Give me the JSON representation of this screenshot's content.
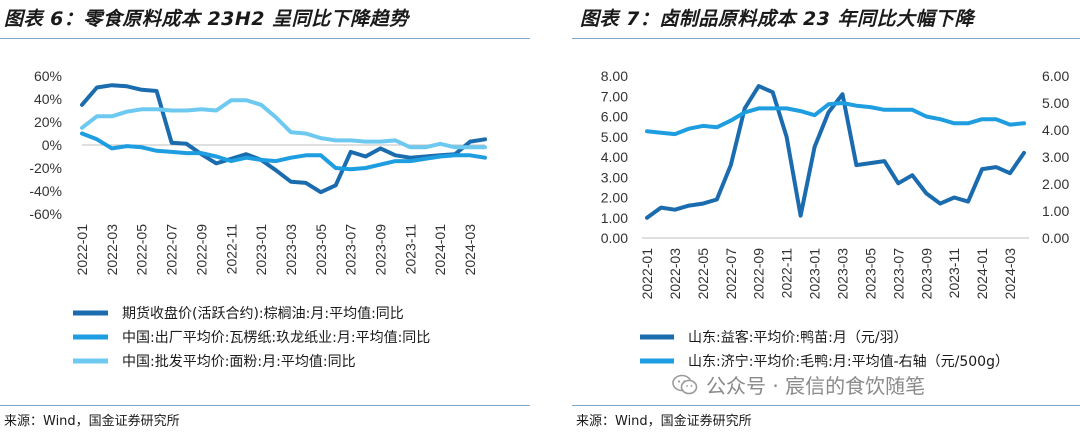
{
  "left": {
    "title": "图表 6：零食原料成本 23H2 呈同比下降趋势",
    "source": "来源：Wind，国金证券研究所",
    "chart_data": {
      "type": "line",
      "title": "图表 6：零食原料成本 23H2 呈同比下降趋势",
      "x": [
        "2022-01",
        "2022-02",
        "2022-03",
        "2022-04",
        "2022-05",
        "2022-06",
        "2022-07",
        "2022-08",
        "2022-09",
        "2022-10",
        "2022-11",
        "2022-12",
        "2023-01",
        "2023-02",
        "2023-03",
        "2023-04",
        "2023-05",
        "2023-06",
        "2023-07",
        "2023-08",
        "2023-09",
        "2023-10",
        "2023-11",
        "2023-12",
        "2024-01",
        "2024-02",
        "2024-03",
        "2024-04"
      ],
      "xticks": [
        "2022-01",
        "2022-03",
        "2022-05",
        "2022-07",
        "2022-09",
        "2022-11",
        "2023-01",
        "2023-03",
        "2023-05",
        "2023-07",
        "2023-09",
        "2023-11",
        "2024-01",
        "2024-03"
      ],
      "yticks": [
        "60%",
        "40%",
        "20%",
        "0%",
        "-20%",
        "-40%",
        "-60%"
      ],
      "ylim": [
        -60,
        60
      ],
      "series": [
        {
          "name": "期货收盘价(活跃合约):棕榈油:月:平均值:同比",
          "color": "#1a6cae",
          "values": [
            35,
            50,
            52,
            51,
            48,
            47,
            2,
            1,
            -8,
            -16,
            -12,
            -8,
            -13,
            -22,
            -32,
            -33,
            -41,
            -35,
            -6,
            -10,
            -3,
            -9,
            -11,
            -10,
            -9,
            -8,
            3,
            5
          ]
        },
        {
          "name": "中国:出厂平均价:瓦楞纸:玖龙纸业:月:平均值:同比",
          "color": "#1e9ee0",
          "values": [
            10,
            5,
            -3,
            -1,
            -2,
            -5,
            -6,
            -7,
            -7,
            -10,
            -14,
            -11,
            -13,
            -14,
            -11,
            -9,
            -9,
            -20,
            -21,
            -20,
            -17,
            -14,
            -14,
            -12,
            -10,
            -9,
            -9,
            -11
          ]
        },
        {
          "name": "中国:批发平均价:面粉:月:平均值:同比",
          "color": "#6ec9f0",
          "values": [
            15,
            25,
            25,
            29,
            31,
            31,
            30,
            30,
            31,
            30,
            39,
            39,
            35,
            24,
            11,
            10,
            6,
            4,
            4,
            3,
            3,
            4,
            -2,
            -2,
            1,
            -2,
            -2,
            -2
          ]
        }
      ]
    }
  },
  "right": {
    "title": "图表 7：卤制品原料成本 23 年同比大幅下降",
    "source": "来源：Wind，国金证券研究所",
    "chart_data": {
      "type": "line",
      "title": "图表 7：卤制品原料成本 23 年同比大幅下降",
      "x": [
        "2022-01",
        "2022-02",
        "2022-03",
        "2022-04",
        "2022-05",
        "2022-06",
        "2022-07",
        "2022-08",
        "2022-09",
        "2022-10",
        "2022-11",
        "2022-12",
        "2023-01",
        "2023-02",
        "2023-03",
        "2023-04",
        "2023-05",
        "2023-06",
        "2023-07",
        "2023-08",
        "2023-09",
        "2023-10",
        "2023-11",
        "2023-12",
        "2024-01",
        "2024-02",
        "2024-03",
        "2024-04"
      ],
      "xticks": [
        "2022-01",
        "2022-03",
        "2022-05",
        "2022-07",
        "2022-09",
        "2022-11",
        "2023-01",
        "2023-03",
        "2023-05",
        "2023-07",
        "2023-09",
        "2023-11",
        "2024-01",
        "2024-03"
      ],
      "yticks_left": [
        "8.00",
        "7.00",
        "6.00",
        "5.00",
        "4.00",
        "3.00",
        "2.00",
        "1.00",
        "0.00"
      ],
      "yticks_right": [
        "6.00",
        "5.00",
        "4.00",
        "3.00",
        "2.00",
        "1.00",
        "0.00"
      ],
      "ylim_left": [
        0,
        8
      ],
      "ylim_right": [
        0,
        6
      ],
      "series": [
        {
          "name": "山东:益客:平均价:鸭苗:月（元/羽）",
          "axis": "left",
          "color": "#1a6cae",
          "values": [
            1.0,
            1.5,
            1.4,
            1.6,
            1.7,
            1.9,
            3.6,
            6.4,
            7.5,
            7.2,
            5.0,
            1.1,
            4.5,
            6.2,
            7.1,
            3.6,
            3.7,
            3.8,
            2.7,
            3.1,
            2.2,
            1.7,
            2.0,
            1.8,
            3.4,
            3.5,
            3.2,
            4.2
          ]
        },
        {
          "name": "山东:济宁:平均价:毛鸭:月:平均值-右轴（元/500g）",
          "axis": "right",
          "color": "#1e9ee0",
          "values": [
            3.95,
            3.9,
            3.85,
            4.05,
            4.15,
            4.1,
            4.35,
            4.65,
            4.8,
            4.8,
            4.8,
            4.7,
            4.55,
            4.95,
            5.0,
            4.9,
            4.85,
            4.75,
            4.75,
            4.75,
            4.5,
            4.4,
            4.25,
            4.25,
            4.4,
            4.4,
            4.2,
            4.25
          ]
        }
      ]
    }
  },
  "watermark": {
    "text": "公众号 · 宸信的食饮随笔",
    "icon": "wechat-icon"
  }
}
